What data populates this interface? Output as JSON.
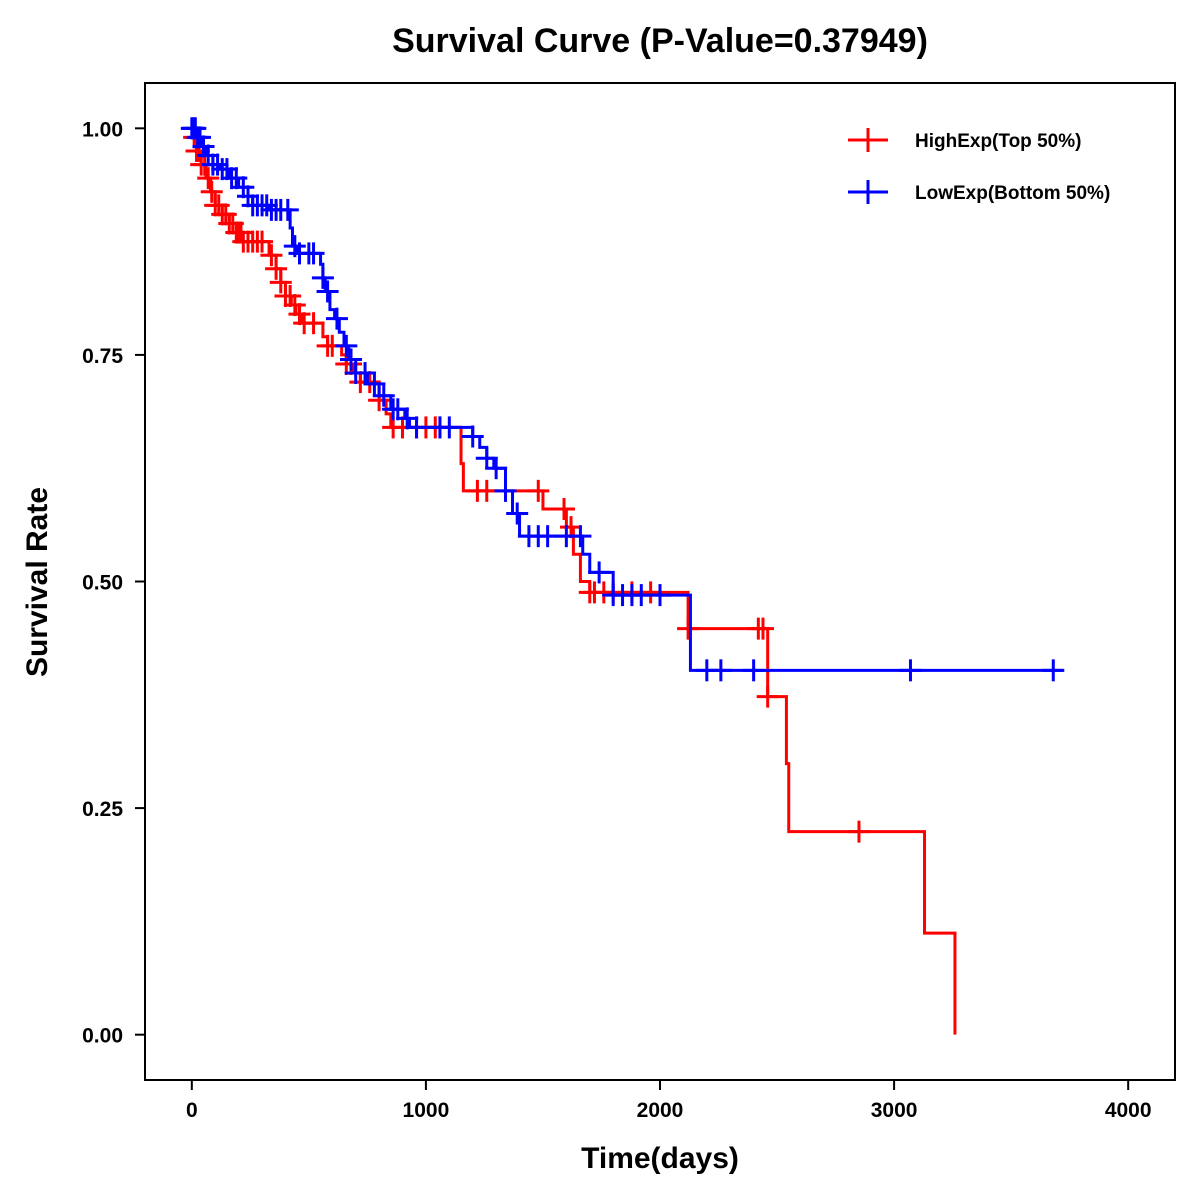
{
  "chart_data": {
    "type": "line",
    "title": "Survival Curve (P-Value=0.37949)",
    "xlabel": "Time(days)",
    "ylabel": "Survival Rate",
    "xlim": [
      -200,
      4200
    ],
    "ylim": [
      -0.05,
      1.05
    ],
    "xticks": [
      0,
      1000,
      2000,
      3000,
      4000
    ],
    "xtick_labels": [
      "0",
      "1000",
      "2000",
      "3000",
      "4000"
    ],
    "yticks": [
      0,
      0.25,
      0.5,
      0.75,
      1.0
    ],
    "ytick_labels": [
      "0.00",
      "0.25",
      "0.50",
      "0.75",
      "1.00"
    ],
    "grid": false,
    "legend_position": "top-right",
    "series": [
      {
        "name": "HighExp(Top 50%)",
        "color": "#ff0000",
        "steps": [
          [
            0,
            1.0
          ],
          [
            5,
            0.99
          ],
          [
            20,
            0.975
          ],
          [
            40,
            0.96
          ],
          [
            60,
            0.945
          ],
          [
            80,
            0.93
          ],
          [
            100,
            0.915
          ],
          [
            130,
            0.905
          ],
          [
            160,
            0.895
          ],
          [
            190,
            0.885
          ],
          [
            215,
            0.875
          ],
          [
            330,
            0.86
          ],
          [
            360,
            0.845
          ],
          [
            380,
            0.83
          ],
          [
            400,
            0.815
          ],
          [
            425,
            0.805
          ],
          [
            445,
            0.795
          ],
          [
            470,
            0.785
          ],
          [
            560,
            0.77
          ],
          [
            580,
            0.76
          ],
          [
            640,
            0.75
          ],
          [
            660,
            0.74
          ],
          [
            690,
            0.73
          ],
          [
            720,
            0.72
          ],
          [
            800,
            0.7
          ],
          [
            830,
            0.685
          ],
          [
            850,
            0.67
          ],
          [
            1150,
            0.63
          ],
          [
            1160,
            0.6
          ],
          [
            1380,
            0.6
          ],
          [
            1500,
            0.58
          ],
          [
            1600,
            0.56
          ],
          [
            1630,
            0.53
          ],
          [
            1660,
            0.5
          ],
          [
            1700,
            0.488
          ],
          [
            2120,
            0.448
          ],
          [
            2460,
            0.373
          ],
          [
            2540,
            0.299
          ],
          [
            2550,
            0.224
          ],
          [
            3130,
            0.112
          ],
          [
            3260,
            0.0
          ]
        ],
        "end_time": 3260,
        "censor_times": [
          10,
          20,
          30,
          40,
          55,
          70,
          85,
          100,
          115,
          130,
          145,
          160,
          175,
          190,
          200,
          210,
          220,
          240,
          260,
          280,
          300,
          340,
          360,
          380,
          400,
          420,
          440,
          460,
          480,
          520,
          580,
          600,
          660,
          680,
          720,
          760,
          800,
          860,
          900,
          960,
          1000,
          1040,
          1060,
          1220,
          1260,
          1480,
          1590,
          1620,
          1700,
          1720,
          1760,
          1800,
          1880,
          1960,
          2120,
          2420,
          2440,
          2460,
          2850
        ]
      },
      {
        "name": "LowExp(Bottom 50%)",
        "color": "#0000ff",
        "steps": [
          [
            0,
            1.0
          ],
          [
            20,
            0.99
          ],
          [
            40,
            0.98
          ],
          [
            60,
            0.97
          ],
          [
            90,
            0.96
          ],
          [
            120,
            0.955
          ],
          [
            160,
            0.945
          ],
          [
            200,
            0.935
          ],
          [
            240,
            0.925
          ],
          [
            260,
            0.915
          ],
          [
            330,
            0.91
          ],
          [
            420,
            0.89
          ],
          [
            430,
            0.87
          ],
          [
            450,
            0.862
          ],
          [
            550,
            0.85
          ],
          [
            560,
            0.835
          ],
          [
            570,
            0.82
          ],
          [
            590,
            0.8
          ],
          [
            610,
            0.79
          ],
          [
            630,
            0.775
          ],
          [
            650,
            0.76
          ],
          [
            670,
            0.745
          ],
          [
            700,
            0.73
          ],
          [
            750,
            0.718
          ],
          [
            800,
            0.705
          ],
          [
            850,
            0.69
          ],
          [
            910,
            0.68
          ],
          [
            930,
            0.67
          ],
          [
            1200,
            0.66
          ],
          [
            1230,
            0.648
          ],
          [
            1260,
            0.636
          ],
          [
            1290,
            0.625
          ],
          [
            1340,
            0.6
          ],
          [
            1370,
            0.575
          ],
          [
            1400,
            0.55
          ],
          [
            1670,
            0.53
          ],
          [
            1700,
            0.51
          ],
          [
            1800,
            0.485
          ],
          [
            2130,
            0.402
          ]
        ],
        "end_time": 3720,
        "censor_times": [
          0,
          5,
          10,
          15,
          25,
          35,
          50,
          70,
          90,
          110,
          130,
          150,
          170,
          190,
          220,
          240,
          260,
          280,
          300,
          320,
          340,
          360,
          380,
          410,
          440,
          460,
          500,
          520,
          560,
          580,
          620,
          660,
          680,
          700,
          740,
          780,
          820,
          860,
          880,
          920,
          960,
          1060,
          1100,
          1200,
          1260,
          1300,
          1340,
          1390,
          1440,
          1480,
          1520,
          1600,
          1660,
          1740,
          1800,
          1840,
          1880,
          1920,
          2000,
          2200,
          2260,
          2400,
          3070,
          3680
        ]
      }
    ]
  }
}
